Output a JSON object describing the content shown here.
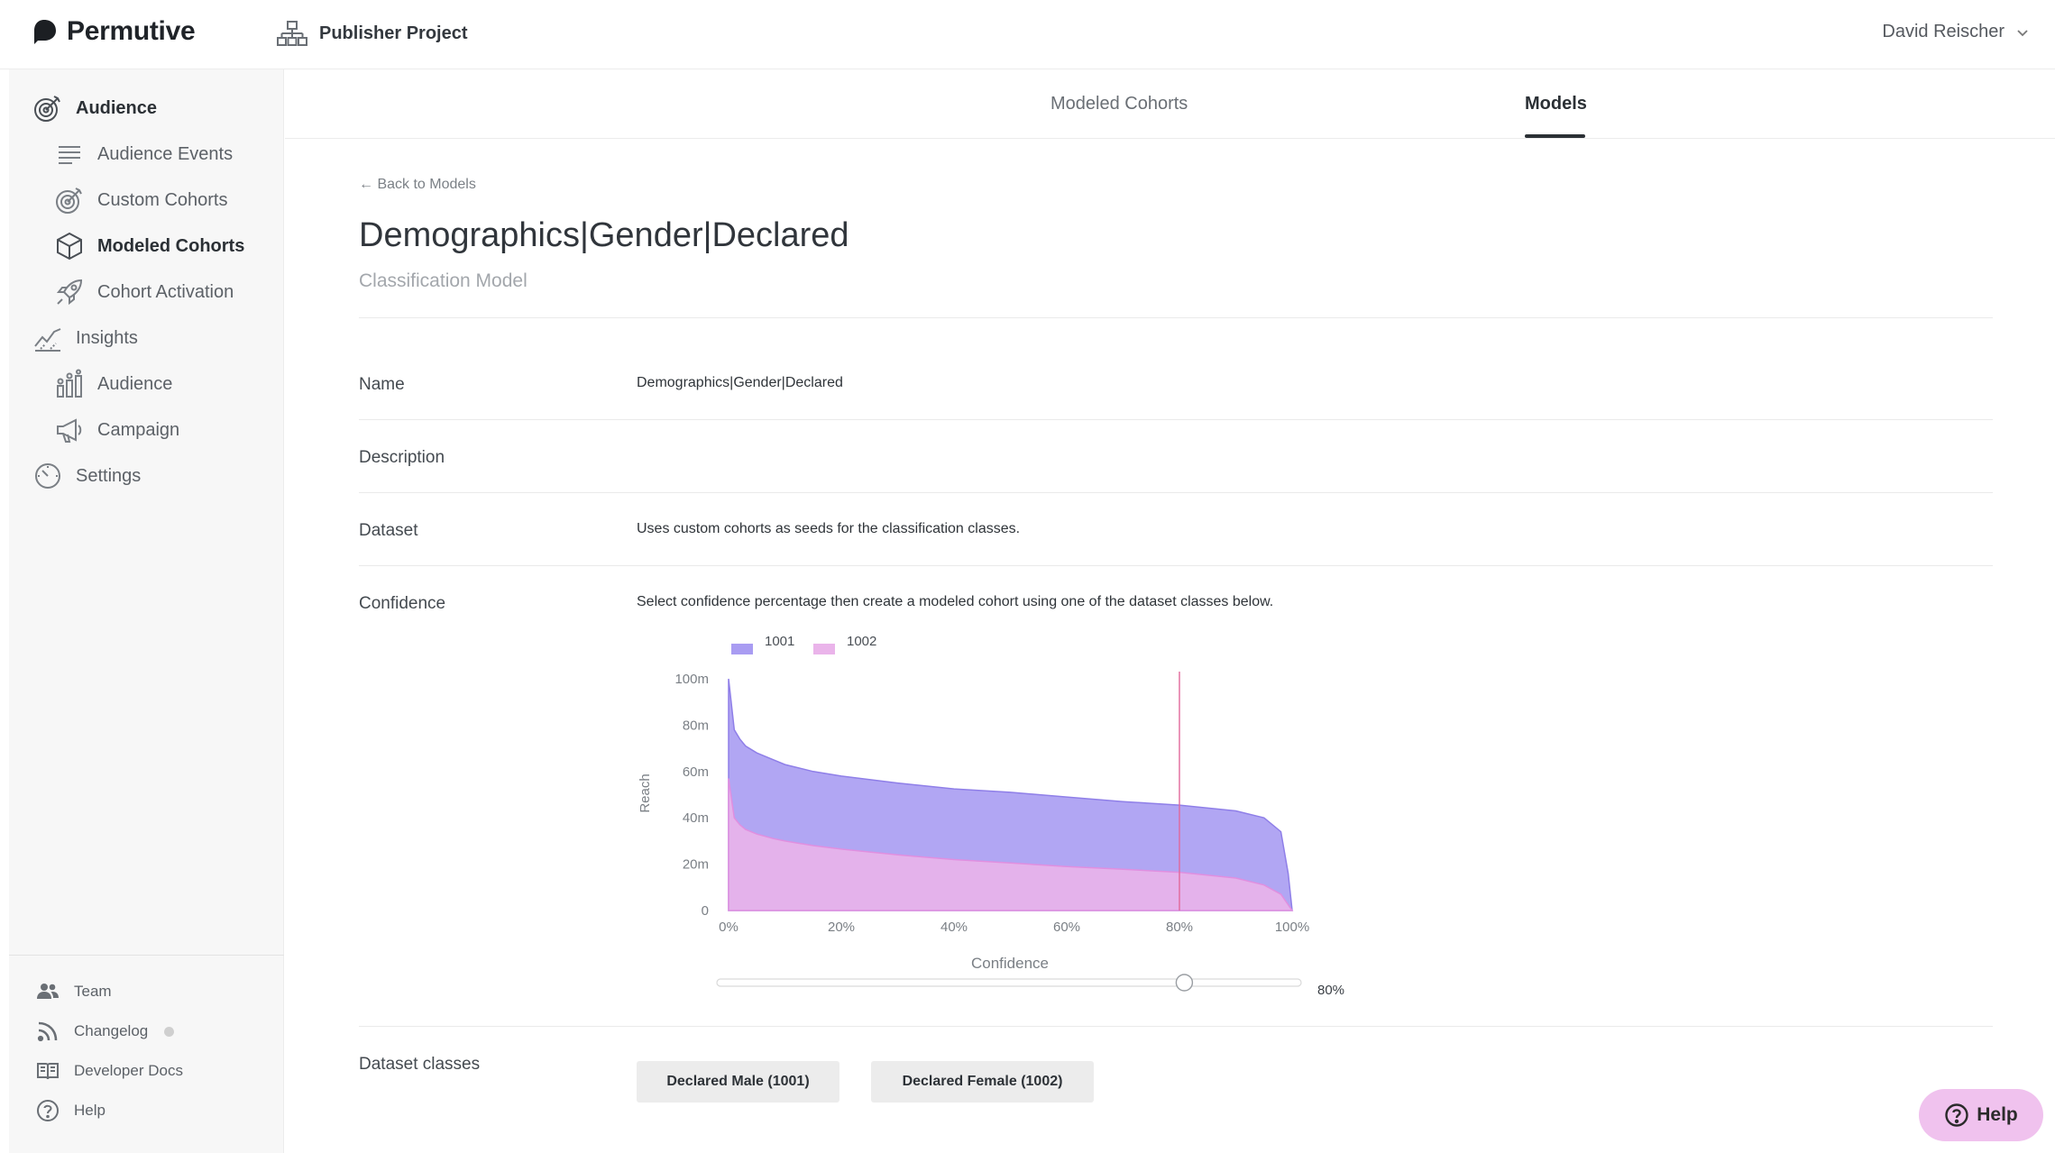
{
  "topbar": {
    "brand": "Permutive",
    "project": "Publisher Project",
    "user": "David Reischer"
  },
  "sidebar": {
    "items": [
      {
        "label": "Audience",
        "icon": "target-icon"
      },
      {
        "label": "Audience Events",
        "icon": "lines-icon"
      },
      {
        "label": "Custom Cohorts",
        "icon": "target-icon"
      },
      {
        "label": "Modeled Cohorts",
        "icon": "cube-icon"
      },
      {
        "label": "Cohort Activation",
        "icon": "rocket-icon"
      },
      {
        "label": "Insights",
        "icon": "trend-icon"
      },
      {
        "label": "Audience",
        "icon": "bar-people-icon"
      },
      {
        "label": "Campaign",
        "icon": "megaphone-icon"
      },
      {
        "label": "Settings",
        "icon": "gauge-icon"
      }
    ],
    "footer": [
      {
        "label": "Team",
        "icon": "people-icon"
      },
      {
        "label": "Changelog",
        "icon": "rss-icon"
      },
      {
        "label": "Developer Docs",
        "icon": "book-icon"
      },
      {
        "label": "Help",
        "icon": "question-icon"
      }
    ]
  },
  "tabs": [
    {
      "label": "Modeled Cohorts",
      "active": false
    },
    {
      "label": "Models",
      "active": true
    }
  ],
  "page": {
    "back": "← Back to Models",
    "title": "Demographics|Gender|Declared",
    "subtitle": "Classification Model"
  },
  "fields": {
    "name_label": "Name",
    "name_value": "Demographics|Gender|Declared",
    "description_label": "Description",
    "dataset_label": "Dataset",
    "dataset_value": "Uses custom cohorts as seeds for the classification classes.",
    "confidence_label": "Confidence",
    "confidence_value": "Select confidence percentage then create a modeled cohort using one of the dataset classes below.",
    "classes_label": "Dataset classes"
  },
  "chart_data": {
    "type": "area",
    "xlabel": "Confidence",
    "ylabel": "Reach",
    "xlim": [
      0,
      100
    ],
    "ylim": [
      0,
      100
    ],
    "x_ticks": [
      "0%",
      "20%",
      "40%",
      "60%",
      "80%",
      "100%"
    ],
    "y_ticks": [
      "0",
      "20m",
      "40m",
      "60m",
      "80m",
      "100m"
    ],
    "marker_x": 80,
    "legend_position": "top-left",
    "x": [
      0,
      1,
      2,
      3,
      5,
      8,
      10,
      15,
      20,
      30,
      40,
      50,
      60,
      70,
      80,
      90,
      95,
      98,
      99.3,
      100
    ],
    "series": [
      {
        "name": "1001",
        "color": "#a99cf2",
        "values": [
          100,
          78,
          74,
          71,
          68,
          65,
          63,
          60,
          58,
          55,
          52.5,
          51,
          49,
          47,
          45.5,
          43,
          40,
          34,
          16,
          0
        ]
      },
      {
        "name": "1002",
        "color": "#eab4ea",
        "values": [
          57,
          40,
          37,
          35,
          33,
          31,
          30,
          28,
          26.5,
          24,
          22,
          20.5,
          19,
          17.8,
          16.5,
          14,
          11,
          7,
          2.5,
          0
        ]
      }
    ]
  },
  "slider": {
    "value": 80,
    "label": "80%"
  },
  "classes": [
    {
      "label": "Declared Male (1001)"
    },
    {
      "label": "Declared Female (1002)"
    }
  ],
  "help_label": "Help"
}
